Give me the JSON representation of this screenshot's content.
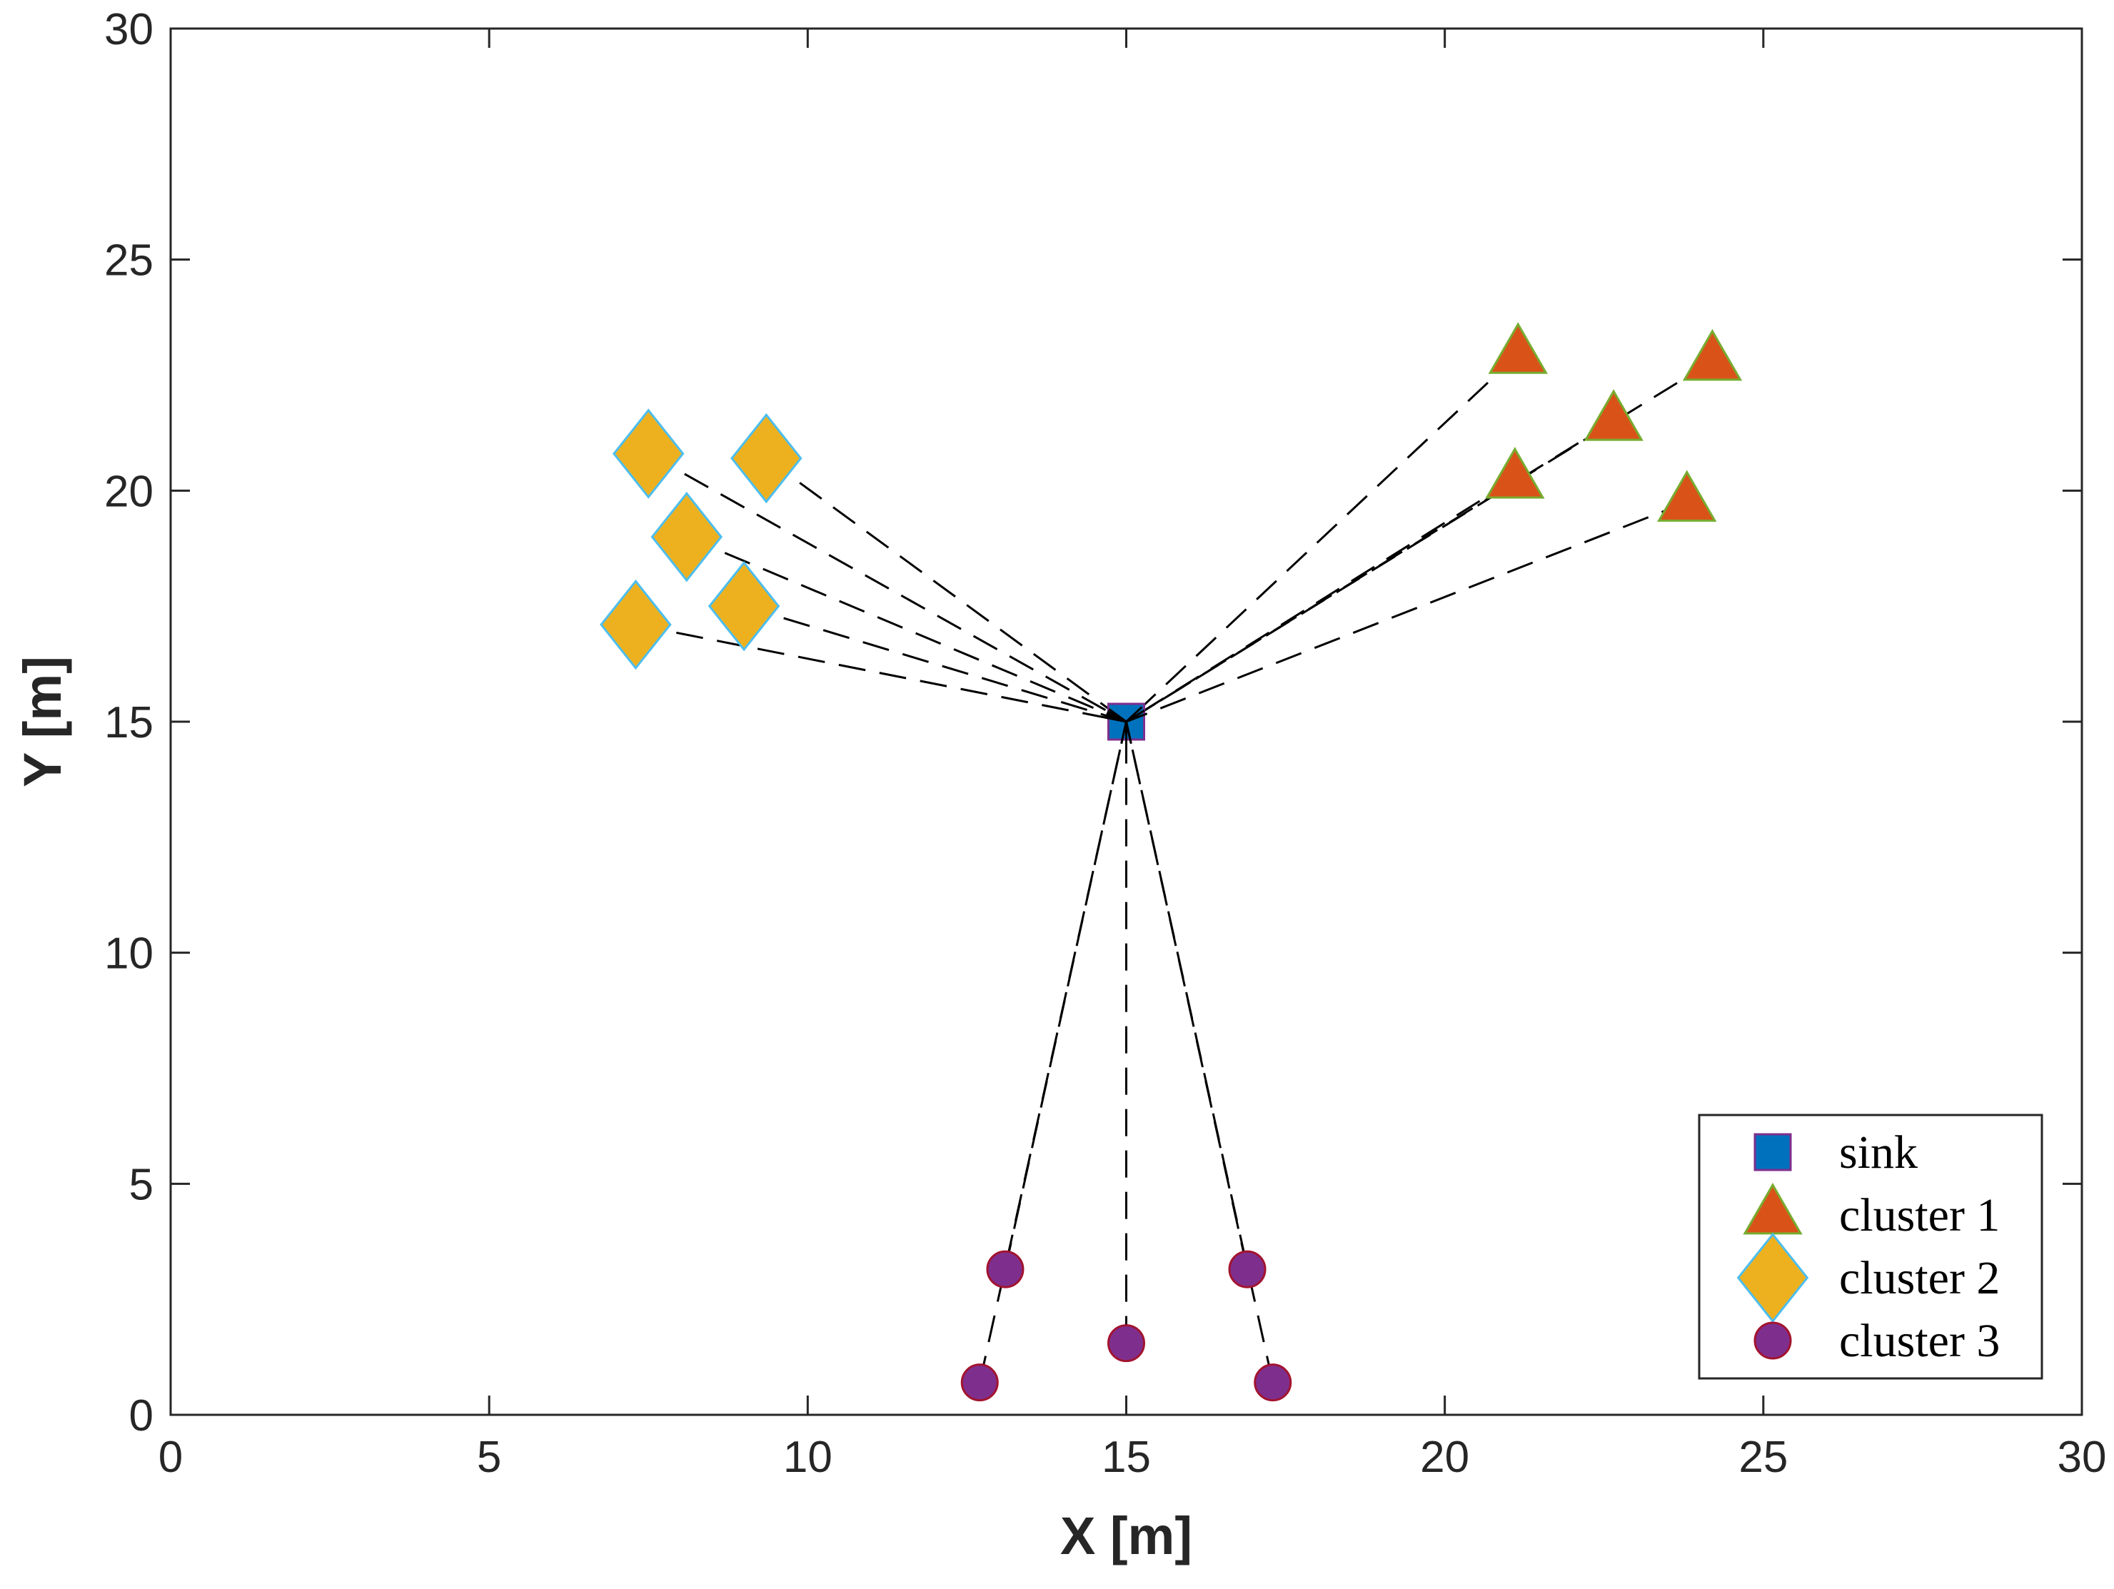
{
  "chart_data": {
    "type": "scatter",
    "title": "",
    "xlabel": "X [m]",
    "ylabel": "Y [m]",
    "xlim": [
      0,
      30
    ],
    "ylim": [
      0,
      30
    ],
    "xticks": [
      0,
      5,
      10,
      15,
      20,
      25,
      30
    ],
    "yticks": [
      0,
      5,
      10,
      15,
      20,
      25,
      30
    ],
    "grid": false,
    "legend_position": "bottom-right",
    "sink": {
      "name": "sink",
      "marker": "square",
      "color": "#0072BD",
      "edge": "#7E2F8E",
      "x": 15,
      "y": 15
    },
    "series": [
      {
        "name": "cluster 1",
        "marker": "triangle",
        "color": "#D95319",
        "edge": "#77AC30",
        "points": [
          [
            21.15,
            22.95
          ],
          [
            24.2,
            22.8
          ],
          [
            22.65,
            21.5
          ],
          [
            21.1,
            20.25
          ],
          [
            23.8,
            19.75
          ]
        ]
      },
      {
        "name": "cluster 2",
        "marker": "diamond",
        "color": "#EDB120",
        "edge": "#4DBEEE",
        "points": [
          [
            7.5,
            20.8
          ],
          [
            9.35,
            20.7
          ],
          [
            8.1,
            19.0
          ],
          [
            9.0,
            17.5
          ],
          [
            7.3,
            17.1
          ]
        ]
      },
      {
        "name": "cluster 3",
        "marker": "circle",
        "color": "#7E2F8E",
        "edge": "#A2142F",
        "points": [
          [
            13.1,
            3.15
          ],
          [
            16.9,
            3.15
          ],
          [
            15.0,
            1.55
          ],
          [
            12.7,
            0.7
          ],
          [
            17.3,
            0.7
          ]
        ]
      }
    ],
    "links": "dashed black lines connect every cluster node to the sink"
  }
}
